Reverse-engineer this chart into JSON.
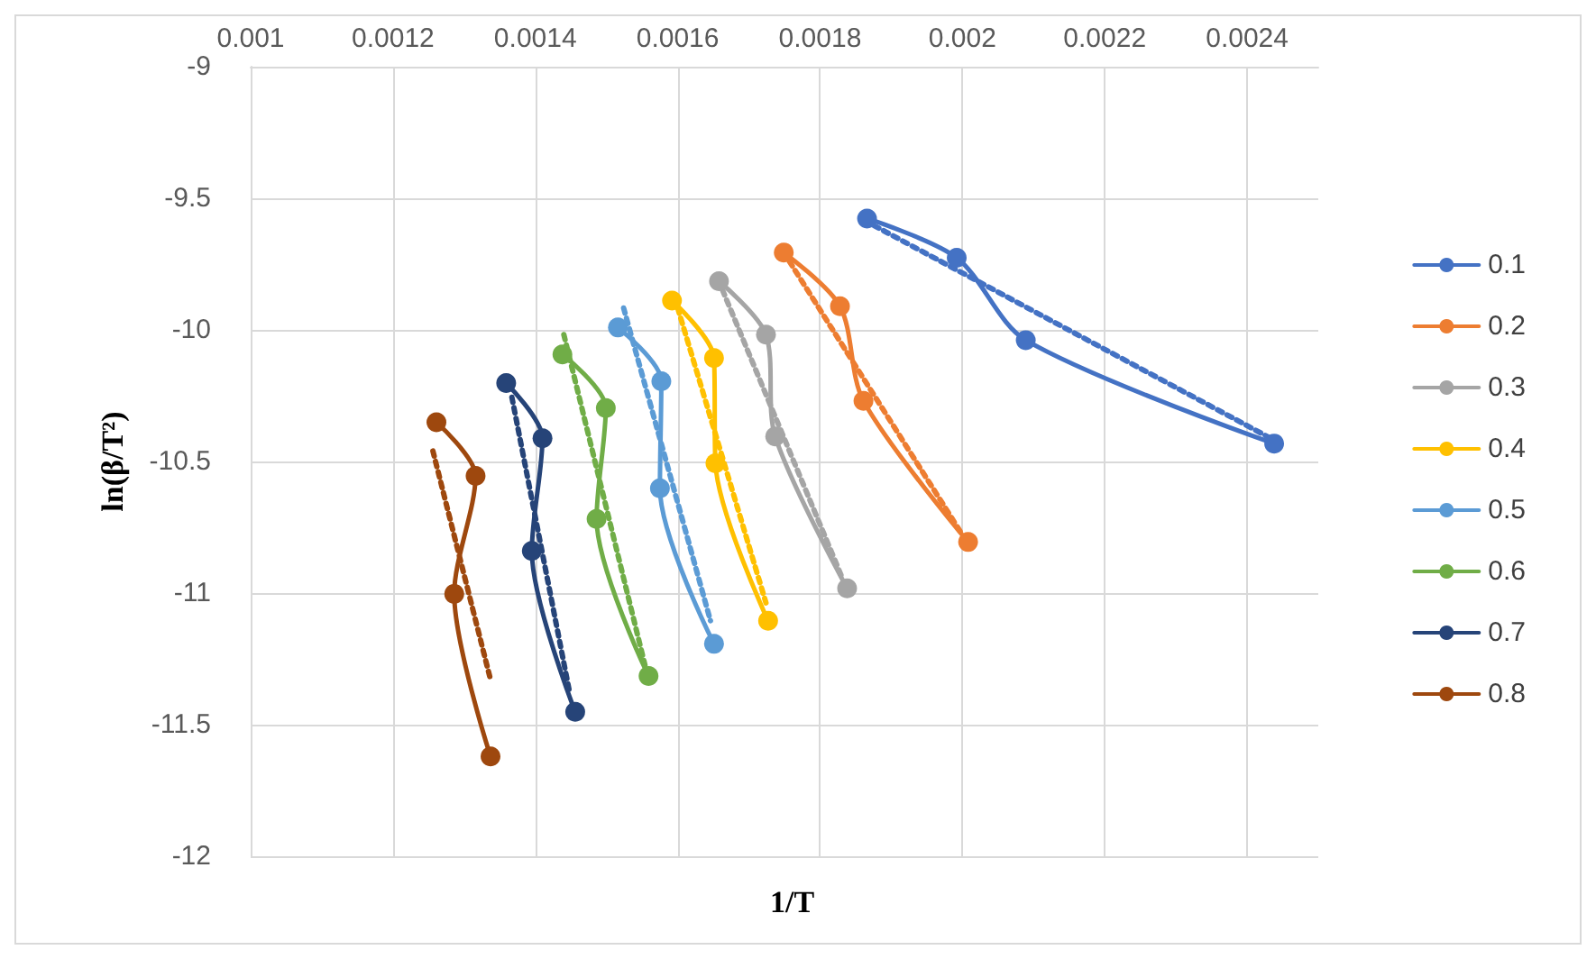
{
  "chart_data": {
    "type": "line",
    "xlabel": "1/T",
    "ylabel": "ln(β/T²)",
    "xlim": [
      0.001,
      0.0025
    ],
    "xticks": [
      0.001,
      0.0012,
      0.0014,
      0.0016,
      0.0018,
      0.002,
      0.0022,
      0.0024
    ],
    "ylim": [
      -12,
      -9
    ],
    "yticks": [
      -12,
      -11.5,
      -11,
      -10.5,
      -10,
      -9.5,
      -9
    ],
    "grid": true,
    "legend": "right",
    "marker": "circle",
    "line_style": "solid",
    "series": [
      {
        "name": "0.1",
        "color": "#4472c4",
        "x": [
          0.001866,
          0.001992,
          0.002089,
          0.002438
        ],
        "values": [
          -9.577,
          -9.726,
          -10.039,
          -10.432
        ]
      },
      {
        "name": "0.2",
        "color": "#ed7d31",
        "x": [
          0.001749,
          0.001828,
          0.001861,
          0.002008
        ],
        "values": [
          -9.706,
          -9.91,
          -10.27,
          -10.806
        ]
      },
      {
        "name": "0.3",
        "color": "#a5a5a5",
        "x": [
          0.001658,
          0.001724,
          0.001737,
          0.001838
        ],
        "values": [
          -9.815,
          -10.018,
          -10.405,
          -10.982
        ]
      },
      {
        "name": "0.4",
        "color": "#ffc000",
        "x": [
          0.001592,
          0.001651,
          0.001653,
          0.001727
        ],
        "values": [
          -9.889,
          -10.107,
          -10.507,
          -11.105
        ]
      },
      {
        "name": "0.5",
        "color": "#5b9bd5",
        "x": [
          0.001516,
          0.001577,
          0.001575,
          0.001651
        ],
        "values": [
          -9.991,
          -10.195,
          -10.602,
          -11.193
        ]
      },
      {
        "name": "0.6",
        "color": "#70ad47",
        "x": [
          0.001438,
          0.001499,
          0.001486,
          0.001559
        ],
        "values": [
          -10.093,
          -10.297,
          -10.718,
          -11.315
        ]
      },
      {
        "name": "0.7",
        "color": "#264478",
        "x": [
          0.001359,
          0.00141,
          0.001395,
          0.001456
        ],
        "values": [
          -10.202,
          -10.412,
          -10.84,
          -11.451
        ]
      },
      {
        "name": "0.8",
        "color": "#9e480e",
        "x": [
          0.001261,
          0.001316,
          0.001286,
          0.001337
        ],
        "values": [
          -10.351,
          -10.555,
          -11.003,
          -11.621
        ]
      },
      {
        "color": "#4472c4",
        "marker": "none",
        "line_style": "dotted",
        "x": [
          0.001876,
          0.002438
        ],
        "values": [
          -9.604,
          -10.419
        ]
      },
      {
        "color": "#ed7d31",
        "marker": "none",
        "line_style": "dotted",
        "x": [
          0.001757,
          0.002
        ],
        "values": [
          -9.74,
          -10.779
        ]
      },
      {
        "color": "#a5a5a5",
        "marker": "none",
        "line_style": "dotted",
        "x": [
          0.001663,
          0.00183
        ],
        "values": [
          -9.849,
          -10.935
        ]
      },
      {
        "color": "#ffc000",
        "marker": "none",
        "line_style": "dotted",
        "x": [
          0.0016,
          0.001724
        ],
        "values": [
          -9.917,
          -11.037
        ]
      },
      {
        "color": "#5b9bd5",
        "marker": "none",
        "line_style": "dotted",
        "x": [
          0.001524,
          0.001646
        ],
        "values": [
          -9.917,
          -11.105
        ]
      },
      {
        "color": "#70ad47",
        "marker": "none",
        "line_style": "dotted",
        "x": [
          0.00144,
          0.001554
        ],
        "values": [
          -10.018,
          -11.274
        ]
      },
      {
        "color": "#264478",
        "marker": "none",
        "line_style": "dotted",
        "x": [
          0.001367,
          0.001448
        ],
        "values": [
          -10.256,
          -11.376
        ]
      },
      {
        "color": "#9e480e",
        "marker": "none",
        "line_style": "dotted",
        "x": [
          0.001256,
          0.001337
        ],
        "values": [
          -10.46,
          -11.329
        ]
      }
    ]
  }
}
